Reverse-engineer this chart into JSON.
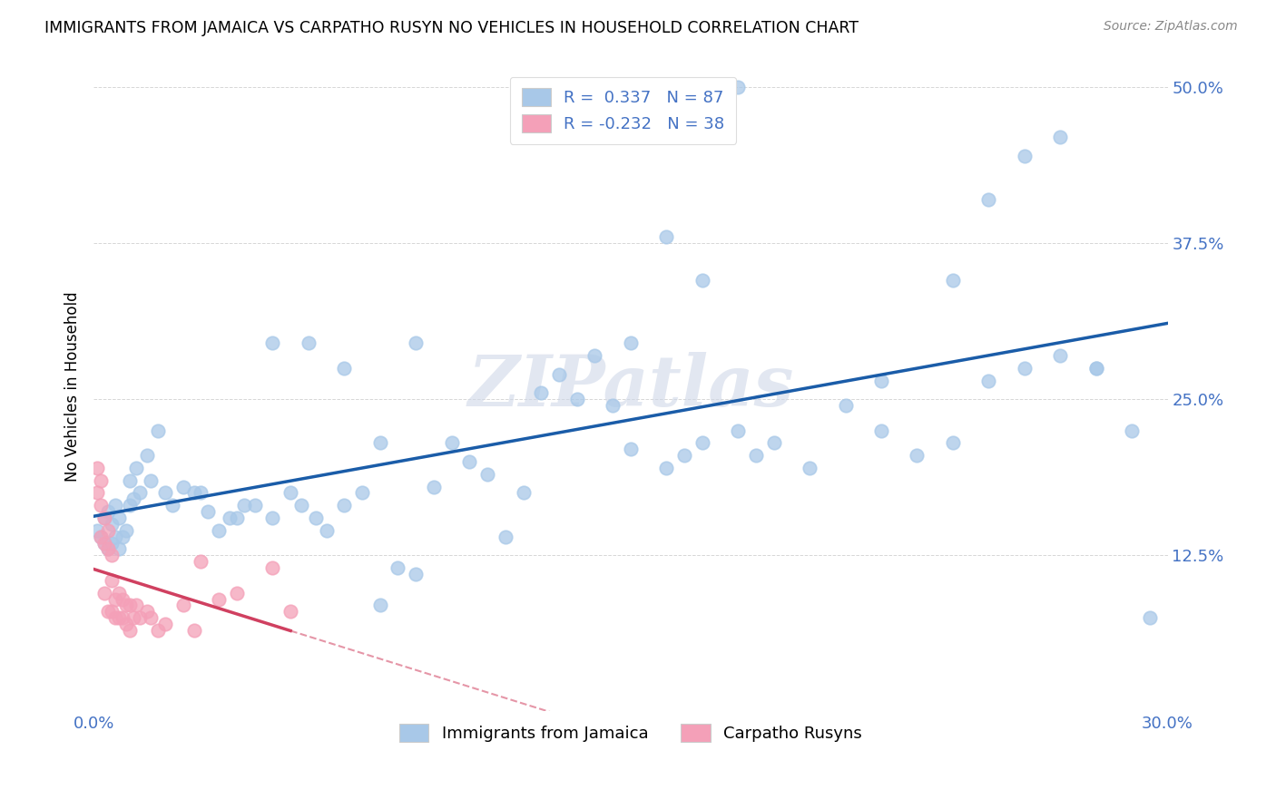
{
  "title": "IMMIGRANTS FROM JAMAICA VS CARPATHO RUSYN NO VEHICLES IN HOUSEHOLD CORRELATION CHART",
  "source": "Source: ZipAtlas.com",
  "xlabel_jamaica": "Immigrants from Jamaica",
  "xlabel_carpatho": "Carpatho Rusyns",
  "ylabel": "No Vehicles in Household",
  "r_jamaica": 0.337,
  "n_jamaica": 87,
  "r_carpatho": -0.232,
  "n_carpatho": 38,
  "xmin": 0.0,
  "xmax": 0.3,
  "ymin": 0.0,
  "ymax": 0.52,
  "color_jamaica": "#a8c8e8",
  "color_carpatho": "#f4a0b8",
  "line_color_jamaica": "#1a5ca8",
  "line_color_carpatho": "#d04060",
  "background_color": "#ffffff",
  "watermark": "ZIPatlas",
  "jamaica_x": [
    0.001,
    0.002,
    0.003,
    0.003,
    0.004,
    0.004,
    0.005,
    0.005,
    0.006,
    0.006,
    0.007,
    0.007,
    0.008,
    0.009,
    0.01,
    0.01,
    0.011,
    0.012,
    0.013,
    0.015,
    0.016,
    0.018,
    0.02,
    0.022,
    0.025,
    0.028,
    0.03,
    0.032,
    0.035,
    0.038,
    0.04,
    0.042,
    0.045,
    0.05,
    0.055,
    0.058,
    0.062,
    0.065,
    0.07,
    0.075,
    0.08,
    0.085,
    0.09,
    0.095,
    0.1,
    0.105,
    0.11,
    0.115,
    0.12,
    0.125,
    0.13,
    0.135,
    0.14,
    0.145,
    0.15,
    0.16,
    0.165,
    0.17,
    0.18,
    0.185,
    0.19,
    0.2,
    0.21,
    0.22,
    0.23,
    0.24,
    0.25,
    0.26,
    0.27,
    0.28,
    0.05,
    0.06,
    0.07,
    0.08,
    0.09,
    0.22,
    0.24,
    0.25,
    0.26,
    0.27,
    0.15,
    0.16,
    0.17,
    0.18,
    0.28,
    0.29,
    0.295
  ],
  "jamaica_y": [
    0.145,
    0.14,
    0.135,
    0.155,
    0.13,
    0.16,
    0.135,
    0.15,
    0.14,
    0.165,
    0.13,
    0.155,
    0.14,
    0.145,
    0.165,
    0.185,
    0.17,
    0.195,
    0.175,
    0.205,
    0.185,
    0.225,
    0.175,
    0.165,
    0.18,
    0.175,
    0.175,
    0.16,
    0.145,
    0.155,
    0.155,
    0.165,
    0.165,
    0.155,
    0.175,
    0.165,
    0.155,
    0.145,
    0.165,
    0.175,
    0.085,
    0.115,
    0.11,
    0.18,
    0.215,
    0.2,
    0.19,
    0.14,
    0.175,
    0.255,
    0.27,
    0.25,
    0.285,
    0.245,
    0.21,
    0.195,
    0.205,
    0.215,
    0.225,
    0.205,
    0.215,
    0.195,
    0.245,
    0.225,
    0.205,
    0.215,
    0.265,
    0.275,
    0.285,
    0.275,
    0.295,
    0.295,
    0.275,
    0.215,
    0.295,
    0.265,
    0.345,
    0.41,
    0.445,
    0.46,
    0.295,
    0.38,
    0.345,
    0.5,
    0.275,
    0.225,
    0.075
  ],
  "carpatho_x": [
    0.001,
    0.001,
    0.002,
    0.002,
    0.002,
    0.003,
    0.003,
    0.003,
    0.004,
    0.004,
    0.004,
    0.005,
    0.005,
    0.005,
    0.006,
    0.006,
    0.007,
    0.007,
    0.008,
    0.008,
    0.009,
    0.009,
    0.01,
    0.01,
    0.011,
    0.012,
    0.013,
    0.015,
    0.016,
    0.018,
    0.02,
    0.025,
    0.028,
    0.03,
    0.035,
    0.04,
    0.05,
    0.055
  ],
  "carpatho_y": [
    0.195,
    0.175,
    0.185,
    0.165,
    0.14,
    0.155,
    0.135,
    0.095,
    0.145,
    0.13,
    0.08,
    0.125,
    0.105,
    0.08,
    0.09,
    0.075,
    0.095,
    0.075,
    0.09,
    0.075,
    0.085,
    0.07,
    0.085,
    0.065,
    0.075,
    0.085,
    0.075,
    0.08,
    0.075,
    0.065,
    0.07,
    0.085,
    0.065,
    0.12,
    0.09,
    0.095,
    0.115,
    0.08
  ]
}
